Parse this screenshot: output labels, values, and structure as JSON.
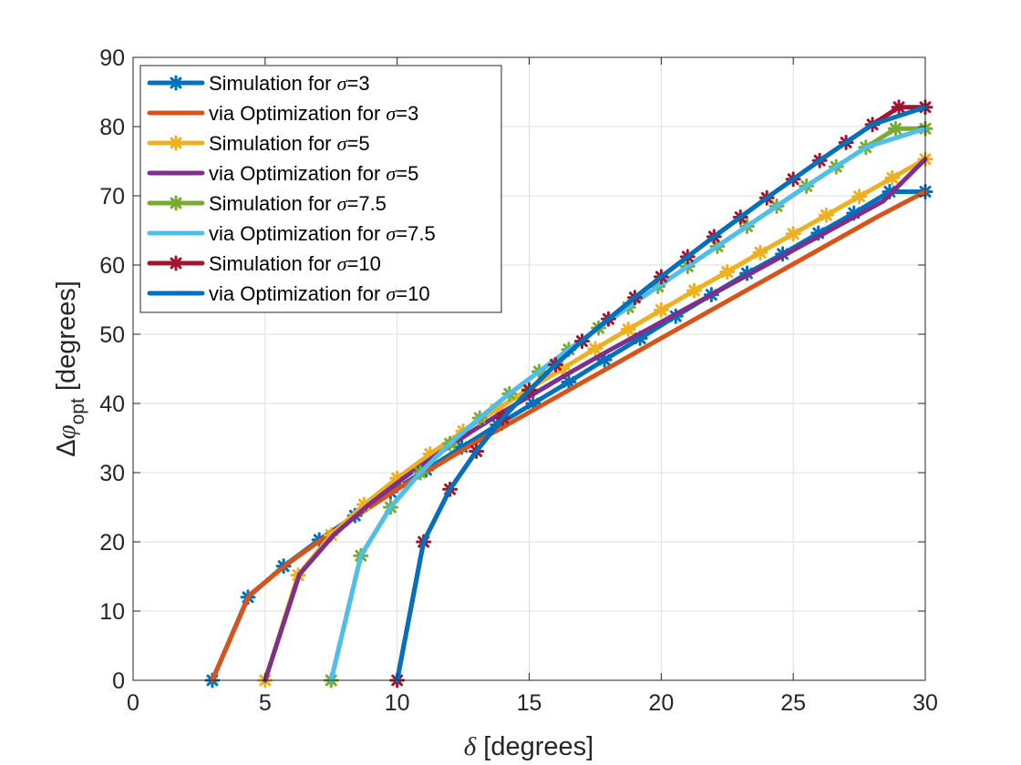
{
  "chart_data": {
    "type": "line",
    "xlabel_symbol": "δ",
    "xlabel_text": " [degrees]",
    "ylabel_prefix": "Δ",
    "ylabel_symbol": "φ",
    "ylabel_sub": "opt",
    "ylabel_text": " [degrees]",
    "xlim": [
      0,
      30
    ],
    "ylim": [
      0,
      90
    ],
    "xticks": [
      0,
      5,
      10,
      15,
      20,
      25,
      30
    ],
    "yticks": [
      0,
      10,
      20,
      30,
      40,
      50,
      60,
      70,
      80,
      90
    ],
    "grid": true,
    "legend_position": "top-left",
    "series": [
      {
        "legend_prefix": "Simulation for ",
        "legend_sigma": "σ",
        "legend_value": "=3",
        "color": "#0072BD",
        "marker": "asterisk",
        "x": [
          3,
          4.35,
          5.7,
          7.05,
          8.4,
          9.75,
          11.1,
          12.45,
          13.8,
          15.15,
          16.5,
          17.85,
          19.2,
          20.55,
          21.9,
          23.25,
          24.6,
          25.95,
          27.3,
          28.65,
          30
        ],
        "y": [
          0,
          12.0,
          16.5,
          20.3,
          23.8,
          27.2,
          30.4,
          33.7,
          36.9,
          40.0,
          43.1,
          46.3,
          49.4,
          52.6,
          55.7,
          58.8,
          61.6,
          64.6,
          67.5,
          70.6,
          70.6
        ]
      },
      {
        "legend_prefix": "via Optimization for ",
        "legend_sigma": "σ",
        "legend_value": "=3",
        "color": "#D95319",
        "marker": "none",
        "x": [
          3,
          4.4,
          5.8,
          7.2,
          8.6,
          10,
          11.4,
          12.8,
          14.2,
          15.6,
          17,
          18.4,
          19.8,
          21.2,
          22.6,
          24,
          25.4,
          26.8,
          28.2,
          30
        ],
        "y": [
          0,
          12.3,
          16.7,
          20.5,
          24.1,
          27.6,
          30.8,
          34.0,
          37.0,
          40.0,
          43.0,
          46.0,
          49.0,
          52.0,
          55.0,
          58.0,
          61.0,
          64.0,
          67.0,
          70.6
        ]
      },
      {
        "legend_prefix": "Simulation for ",
        "legend_sigma": "σ",
        "legend_value": "=5",
        "color": "#EDB120",
        "marker": "asterisk",
        "x": [
          5,
          6.25,
          7.5,
          8.75,
          10,
          11.25,
          12.5,
          13.75,
          15,
          16.25,
          17.5,
          18.75,
          20,
          21.25,
          22.5,
          23.75,
          25,
          26.25,
          27.5,
          28.75,
          30
        ],
        "y": [
          0,
          15.2,
          21.0,
          25.4,
          29.2,
          32.7,
          36.0,
          39.1,
          42.1,
          45.0,
          47.9,
          50.7,
          53.5,
          56.3,
          59.0,
          61.8,
          64.5,
          67.2,
          69.9,
          72.6,
          75.3
        ]
      },
      {
        "legend_prefix": "via Optimization for ",
        "legend_sigma": "σ",
        "legend_value": "=5",
        "color": "#7E2F8E",
        "marker": "none",
        "x": [
          5,
          6.3,
          7.6,
          8.9,
          10.2,
          11.5,
          12.8,
          14.1,
          15.4,
          16.7,
          18,
          19.3,
          20.6,
          21.9,
          23.2,
          24.5,
          25.8,
          27.1,
          28.4,
          30
        ],
        "y": [
          0,
          15.3,
          21.0,
          25.3,
          29.1,
          32.6,
          35.9,
          39.0,
          41.9,
          44.8,
          47.6,
          50.3,
          53.0,
          55.7,
          58.4,
          61.1,
          63.8,
          66.5,
          69.2,
          75.3
        ]
      },
      {
        "legend_prefix": "Simulation for ",
        "legend_sigma": "σ",
        "legend_value": "=7.5",
        "color": "#77AC30",
        "marker": "asterisk",
        "x": [
          7.5,
          8.625,
          9.75,
          10.875,
          12,
          13.125,
          14.25,
          15.375,
          16.5,
          17.625,
          18.75,
          19.875,
          21,
          22.125,
          23.25,
          24.375,
          25.5,
          26.625,
          27.75,
          28.875,
          30
        ],
        "y": [
          0,
          18.0,
          25.0,
          30.0,
          34.2,
          37.9,
          41.4,
          44.6,
          47.8,
          50.9,
          53.9,
          56.9,
          59.8,
          62.7,
          65.6,
          68.5,
          71.4,
          74.2,
          77.0,
          79.7,
          79.7
        ]
      },
      {
        "legend_prefix": "via Optimization for ",
        "legend_sigma": "σ",
        "legend_value": "=7.5",
        "color": "#4DBEEE",
        "marker": "none",
        "x": [
          7.5,
          8.625,
          9.75,
          10.875,
          12,
          13.125,
          14.25,
          15.375,
          16.5,
          17.625,
          18.75,
          19.875,
          21,
          22.125,
          23.25,
          24.375,
          25.5,
          26.625,
          27.75,
          30
        ],
        "y": [
          0,
          18.0,
          25.0,
          30.0,
          34.2,
          37.9,
          41.4,
          44.6,
          47.8,
          50.9,
          53.9,
          56.9,
          59.8,
          62.7,
          65.6,
          68.5,
          71.4,
          74.2,
          77.0,
          79.7
        ]
      },
      {
        "legend_prefix": "Simulation for ",
        "legend_sigma": "σ",
        "legend_value": "=10",
        "color": "#A2142F",
        "marker": "asterisk",
        "x": [
          10,
          11.0,
          12.0,
          13.0,
          14.0,
          15.0,
          16.0,
          17.0,
          18.0,
          19.0,
          20.0,
          21.0,
          22.0,
          23.0,
          24.0,
          25.0,
          26.0,
          27.0,
          28.0,
          29.0,
          30
        ],
        "y": [
          0,
          20.0,
          27.6,
          33.1,
          37.9,
          41.9,
          45.6,
          49.0,
          52.2,
          55.3,
          58.3,
          61.2,
          64.1,
          66.9,
          69.7,
          72.4,
          75.1,
          77.7,
          80.3,
          82.8,
          82.8
        ]
      },
      {
        "legend_prefix": "via Optimization for ",
        "legend_sigma": "σ",
        "legend_value": "=10",
        "color": "#0072BD",
        "marker": "none",
        "x": [
          10,
          11.0,
          12.0,
          13.0,
          14.0,
          15.0,
          16.0,
          17.0,
          18.0,
          19.0,
          20.0,
          21.0,
          22.0,
          23.0,
          24.0,
          25.0,
          26.0,
          27.0,
          28.0,
          30
        ],
        "y": [
          0,
          20.0,
          27.6,
          33.1,
          37.9,
          41.9,
          45.6,
          49.0,
          52.2,
          55.3,
          58.3,
          61.2,
          64.1,
          66.9,
          69.7,
          72.4,
          75.1,
          77.7,
          80.3,
          82.8
        ]
      }
    ]
  }
}
